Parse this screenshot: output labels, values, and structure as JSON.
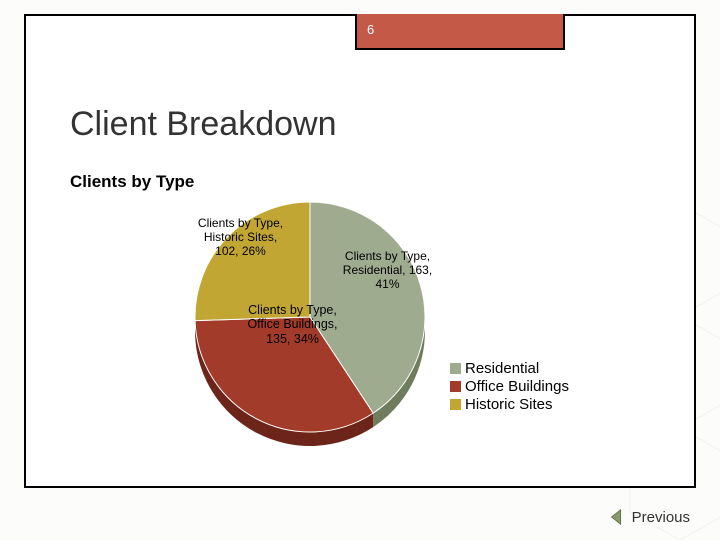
{
  "page_number": "6",
  "slide_title": "Client Breakdown",
  "chart": {
    "type": "pie",
    "title": "Clients by Type",
    "background_color": "#ffffff",
    "series": [
      {
        "name": "Residential",
        "value": 163,
        "percent": 41,
        "color": "#9fab8e",
        "shadow": "#6f7d5d",
        "label": "Clients by Type, Residential, 163, 41%"
      },
      {
        "name": "Office Buildings",
        "value": 135,
        "percent": 34,
        "color": "#a33b2b",
        "shadow": "#6e2519",
        "label": "Clients by Type, Office Buildings, 135, 34%"
      },
      {
        "name": "Historic Sites",
        "value": 102,
        "percent": 26,
        "color": "#c2a634",
        "shadow": "#8c7723",
        "label": "Clients by Type, Historic Sites, 102, 26%"
      }
    ],
    "legend_items": [
      {
        "label": "Residential",
        "color": "#9fab8e"
      },
      {
        "label": "Office Buildings",
        "color": "#a33b2b"
      },
      {
        "label": "Historic Sites",
        "color": "#c2a634"
      }
    ],
    "start_angle_deg": -90,
    "radius": 115,
    "depth": 14
  },
  "nav": {
    "previous_label": "Previous"
  },
  "palette": {
    "tab_background": "#c45947",
    "tab_text": "#ffffff",
    "border": "#000000",
    "page_background": "#fcfcfa",
    "pattern_stroke": "#c9c4b4"
  }
}
